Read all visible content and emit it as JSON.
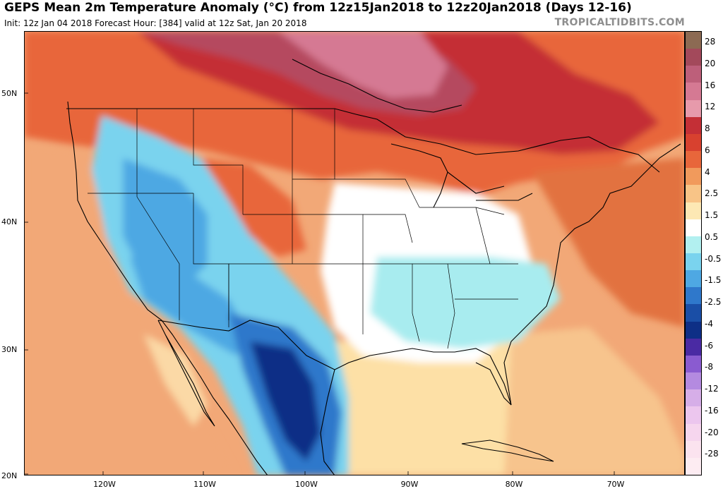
{
  "header": {
    "title": "GEPS Mean 2m Temperature Anomaly (°C) from 12z15Jan2018 to 12z20Jan2018 (Days 12-16)",
    "subtitle": "Init: 12z Jan 04 2018    Forecast Hour: [384]   valid at 12z Sat, Jan 20 2018",
    "brand": "TROPICALTIDBITS.COM"
  },
  "axes": {
    "lat_labels": [
      "50N",
      "40N",
      "30N",
      "20N"
    ],
    "lon_labels": [
      "120W",
      "110W",
      "100W",
      "90W",
      "80W",
      "70W"
    ]
  },
  "colorbar": {
    "labels": [
      "28",
      "20",
      "16",
      "12",
      "8",
      "6",
      "4",
      "2.5",
      "1.5",
      "0.5",
      "-0.5",
      "-1.5",
      "-2.5",
      "-4",
      "-6",
      "-8",
      "-12",
      "-16",
      "-20",
      "-28"
    ],
    "colors": [
      "#8c6a53",
      "#a3495b",
      "#bd5f7a",
      "#d57993",
      "#e79aab",
      "#c42f36",
      "#d8412f",
      "#e8663b",
      "#f19a5c",
      "#f8c487",
      "#fde8b4",
      "#ffffff",
      "#b2f0f0",
      "#7ad3ee",
      "#4ea8e3",
      "#2f78cb",
      "#1a4ea6",
      "#0e2f86",
      "#4a2aa3",
      "#8a5bd0",
      "#b48ae0",
      "#d6aee8",
      "#ecc6ee",
      "#f6d6ee",
      "#fbe3ef",
      "#fdecf2"
    ]
  },
  "map": {
    "ocean_color": "#f5b37a",
    "warm_color": "#e8663b",
    "hot_color": "#c42f36",
    "cold_color": "#4ea8e3",
    "deep_cold_color": "#0e2f86"
  }
}
